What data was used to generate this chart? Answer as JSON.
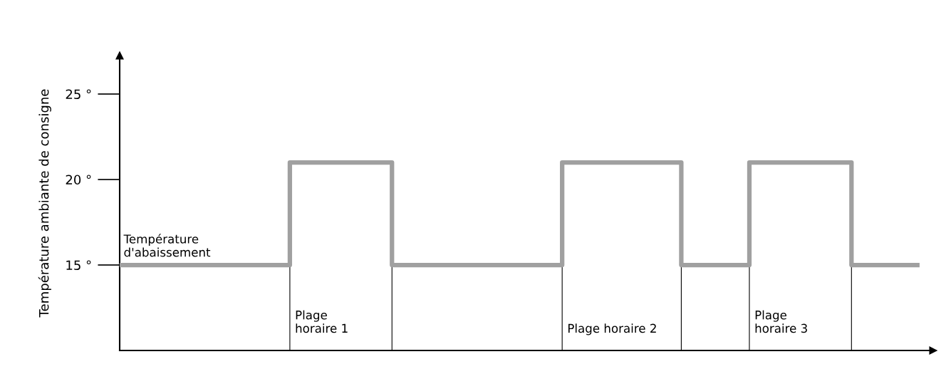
{
  "chart_data": {
    "type": "step",
    "ylabel": "Température ambiante de consigne",
    "categories": [
      null,
      null,
      null,
      null,
      null,
      null,
      null,
      null,
      null,
      null,
      null,
      null,
      null,
      null,
      null,
      null,
      null,
      null,
      null,
      null,
      null,
      null,
      null,
      null,
      null,
      null,
      null,
      null,
      null,
      null,
      null,
      null,
      null,
      null,
      null,
      null,
      null,
      null,
      null,
      null,
      null,
      null,
      null,
      null,
      null,
      null,
      null,
      null
    ],
    "series": [
      {
        "color": "#a0a0a0",
        "values": [
          15,
          15,
          15,
          15,
          15,
          15,
          15,
          15,
          15,
          15,
          21,
          21,
          21,
          21,
          21,
          21,
          15,
          15,
          15,
          15,
          15,
          15,
          15,
          15,
          15,
          15,
          21,
          21,
          21,
          21,
          21,
          21,
          21,
          15,
          15,
          15,
          15,
          21,
          21,
          21,
          21,
          21,
          21,
          15,
          15,
          15,
          15,
          15
        ]
      }
    ],
    "ylim": [
      10,
      27.25
    ],
    "yticks": [
      {
        "value": 15,
        "label": "15 °"
      },
      {
        "value": 20,
        "label": "20 °"
      },
      {
        "value": 25,
        "label": "25 °"
      }
    ],
    "annotations": [
      "Température\nd'abaissement",
      "Plage\nhoraire 1",
      "Plage horaire 2",
      "Plage\nhoraire 3"
    ],
    "grid": false,
    "legend": false
  }
}
